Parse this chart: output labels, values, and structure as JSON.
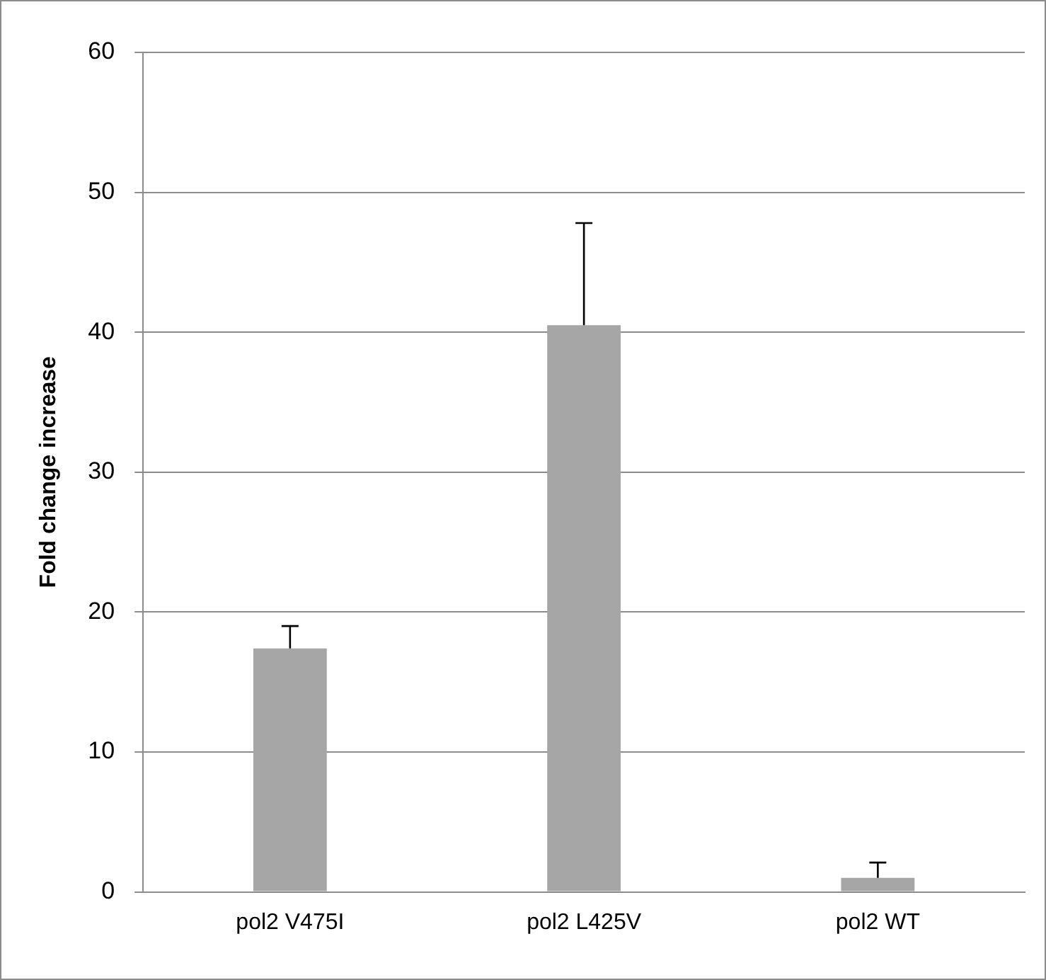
{
  "chart_data": {
    "type": "bar",
    "ylabel": "Fold change increase",
    "categories": [
      "pol2 V475I",
      "pol2 L425V",
      "pol2 WT"
    ],
    "values": [
      17.4,
      40.5,
      1.0
    ],
    "color": "#a6a6a6",
    "errors": [
      [
        17.4,
        19.0
      ],
      [
        40.5,
        47.8
      ],
      [
        1.0,
        2.1
      ]
    ],
    "ylim": [
      0,
      60
    ],
    "yticks": [
      0,
      10,
      20,
      30,
      40,
      50,
      60
    ],
    "grid": "y"
  }
}
